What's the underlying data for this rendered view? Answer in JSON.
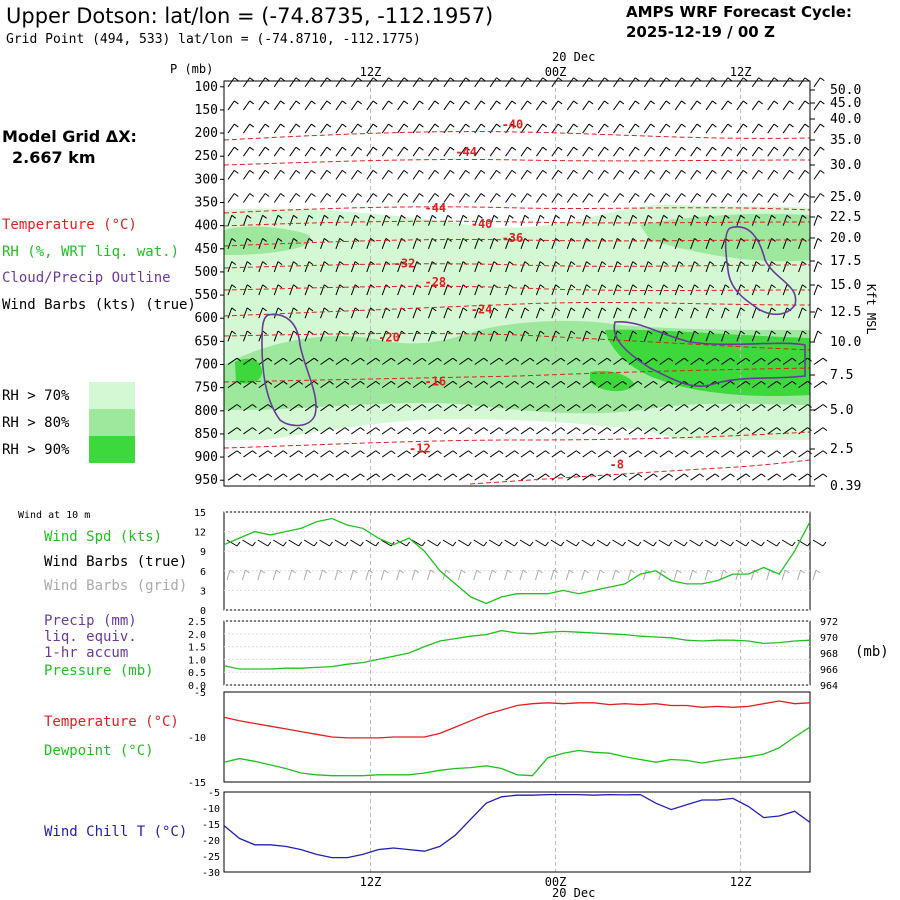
{
  "header": {
    "title": "Upper Dotson:  lat/lon = (-74.8735, -112.1957)",
    "grid_point": "Grid Point (494, 533) lat/lon = (-74.8710, -112.1775)",
    "cycle_line1": "AMPS WRF Forecast Cycle:",
    "cycle_line2": "2025-12-19 / 00  Z",
    "grid_spacing_label": "Model Grid ΔX:",
    "grid_spacing_value": "2.667 km"
  },
  "legend": {
    "temperature": "Temperature (°C)",
    "rh": "RH (%, WRT liq. wat.)",
    "cloud": "Cloud/Precip Outline",
    "wind": "Wind Barbs (kts) (true)",
    "rh_levels": [
      "RH > 70%",
      "RH > 80%",
      "RH > 90%"
    ]
  },
  "colors": {
    "temperature": "#e02020",
    "dewpoint": "#20c020",
    "rh70": "#d4f8d4",
    "rh80": "#9ee89e",
    "rh90": "#3cd83c",
    "cloud": "#6a3a9a",
    "windchill": "#2020b0",
    "grid": "#bbbbbb",
    "grey_barb": "#aaaaaa"
  },
  "chart_data": [
    {
      "id": "sounding",
      "type": "time-height cross section",
      "ylabel_left": "P (mb)",
      "ylabel_right": "Kft MSL",
      "pressure_ticks": [
        "100",
        "150",
        "200",
        "250",
        "300",
        "350",
        "400",
        "450",
        "500",
        "550",
        "600",
        "650",
        "700",
        "750",
        "800",
        "850",
        "900",
        "950"
      ],
      "height_ticks": [
        "50.0",
        "45.0",
        "40.0",
        "35.0",
        "30.0",
        "25.0",
        "22.5",
        "20.0",
        "17.5",
        "15.0",
        "12.5",
        "10.0",
        "7.5",
        "5.0",
        "2.5",
        "0.39"
      ],
      "time_ticks_top": [
        "12Z",
        "00Z",
        "12Z"
      ],
      "date_top": "20 Dec",
      "isotherms": [
        {
          "label": "-40",
          "x_hour": 18,
          "p": 190
        },
        {
          "label": "-44",
          "x_hour": 15,
          "p": 250
        },
        {
          "label": "-44",
          "x_hour": 13,
          "p": 370
        },
        {
          "label": "-40",
          "x_hour": 16,
          "p": 405
        },
        {
          "label": "-36",
          "x_hour": 18,
          "p": 435
        },
        {
          "label": "-32",
          "x_hour": 11,
          "p": 490
        },
        {
          "label": "-28",
          "x_hour": 13,
          "p": 530
        },
        {
          "label": "-24",
          "x_hour": 16,
          "p": 590
        },
        {
          "label": "-20",
          "x_hour": 10,
          "p": 650
        },
        {
          "label": "-16",
          "x_hour": 13,
          "p": 745
        },
        {
          "label": "-12",
          "x_hour": 12,
          "p": 890
        },
        {
          "label": "-8",
          "x_hour": 25,
          "p": 925
        }
      ]
    },
    {
      "id": "wind10m",
      "type": "line",
      "panel_title": "Wind at 10 m",
      "label_speed": "Wind Spd (kts)",
      "label_barbs_true": "Wind Barbs (true)",
      "label_barbs_grid": "Wind Barbs (grid)",
      "y_ticks": [
        "15",
        "12",
        "9",
        "6",
        "3",
        "0"
      ],
      "ylim": [
        0,
        15
      ],
      "series": [
        {
          "name": "Wind Spd (kts)",
          "x": [
            0,
            1,
            2,
            3,
            4,
            5,
            6,
            7,
            8,
            9,
            10,
            11,
            12,
            13,
            14,
            15,
            16,
            17,
            18,
            19,
            20,
            21,
            22,
            23,
            24,
            25,
            26,
            27,
            28,
            29,
            30,
            31,
            32,
            33,
            34,
            35,
            36,
            37,
            38
          ],
          "values": [
            10,
            11,
            12,
            11.5,
            12,
            12.5,
            13.5,
            14,
            13,
            12.5,
            11,
            10,
            11,
            9,
            6,
            4,
            2,
            1,
            2,
            2.5,
            2.5,
            2.5,
            3,
            2.5,
            3,
            3.5,
            4,
            5.5,
            6,
            4.5,
            4,
            4,
            4.5,
            5.5,
            5.5,
            6.5,
            5.5,
            9,
            13.5
          ]
        }
      ]
    },
    {
      "id": "precip_pressure",
      "type": "line",
      "label_precip": "Precip (mm)",
      "label_liq": "liq. equiv.",
      "label_accum": "1-hr accum",
      "label_pressure": "Pressure (mb)",
      "unit_right": "(mb)",
      "y_ticks_left": [
        "2.5",
        "2.0",
        "1.5",
        "1.0",
        "0.5",
        "0.0"
      ],
      "y_ticks_right": [
        "972",
        "970",
        "968",
        "966",
        "964"
      ],
      "ylim_right": [
        964,
        972
      ],
      "series": [
        {
          "name": "Pressure (mb)",
          "x": [
            0,
            1,
            2,
            3,
            4,
            5,
            6,
            7,
            8,
            9,
            10,
            11,
            12,
            13,
            14,
            15,
            16,
            17,
            18,
            19,
            20,
            21,
            22,
            23,
            24,
            25,
            26,
            27,
            28,
            29,
            30,
            31,
            32,
            33,
            34,
            35,
            36,
            37,
            38
          ],
          "values": [
            966.4,
            966.0,
            966.0,
            966.0,
            966.1,
            966.1,
            966.2,
            966.3,
            966.6,
            966.8,
            967.2,
            967.6,
            968.0,
            968.8,
            969.5,
            969.8,
            970.1,
            970.3,
            970.8,
            970.5,
            970.4,
            970.6,
            970.7,
            970.6,
            970.5,
            970.4,
            970.3,
            970.1,
            970.0,
            969.9,
            969.6,
            969.5,
            969.6,
            969.6,
            969.5,
            969.2,
            969.3,
            969.5,
            969.6
          ]
        }
      ]
    },
    {
      "id": "temp_dew",
      "type": "line",
      "label_temp": "Temperature (°C)",
      "label_dew": "Dewpoint (°C)",
      "y_ticks": [
        "-5",
        "-10",
        "-15"
      ],
      "ylim": [
        -15,
        -5
      ],
      "series": [
        {
          "name": "Temperature (°C)",
          "x": [
            0,
            1,
            2,
            3,
            4,
            5,
            6,
            7,
            8,
            9,
            10,
            11,
            12,
            13,
            14,
            15,
            16,
            17,
            18,
            19,
            20,
            21,
            22,
            23,
            24,
            25,
            26,
            27,
            28,
            29,
            30,
            31,
            32,
            33,
            34,
            35,
            36,
            37,
            38
          ],
          "values": [
            -7.8,
            -8.2,
            -8.5,
            -8.8,
            -9.1,
            -9.4,
            -9.7,
            -10.0,
            -10.1,
            -10.1,
            -10.1,
            -10.0,
            -10.0,
            -10.0,
            -9.6,
            -8.9,
            -8.2,
            -7.5,
            -7.0,
            -6.5,
            -6.3,
            -6.2,
            -6.3,
            -6.2,
            -6.2,
            -6.4,
            -6.3,
            -6.4,
            -6.3,
            -6.5,
            -6.5,
            -6.7,
            -6.6,
            -6.7,
            -6.6,
            -6.3,
            -6.0,
            -6.3,
            -6.2
          ]
        },
        {
          "name": "Dewpoint (°C)",
          "x": [
            0,
            1,
            2,
            3,
            4,
            5,
            6,
            7,
            8,
            9,
            10,
            11,
            12,
            13,
            14,
            15,
            16,
            17,
            18,
            19,
            20,
            21,
            22,
            23,
            24,
            25,
            26,
            27,
            28,
            29,
            30,
            31,
            32,
            33,
            34,
            35,
            36,
            37,
            38
          ],
          "values": [
            -12.8,
            -12.4,
            -12.7,
            -13.1,
            -13.5,
            -14.0,
            -14.2,
            -14.3,
            -14.3,
            -14.3,
            -14.2,
            -14.2,
            -14.2,
            -14.0,
            -13.7,
            -13.5,
            -13.4,
            -13.2,
            -13.5,
            -14.2,
            -14.3,
            -12.3,
            -11.8,
            -11.5,
            -11.7,
            -11.8,
            -12.2,
            -12.5,
            -12.8,
            -12.5,
            -12.6,
            -12.9,
            -12.6,
            -12.4,
            -12.2,
            -11.9,
            -11.2,
            -10.0,
            -8.9
          ]
        }
      ]
    },
    {
      "id": "windchill",
      "type": "line",
      "label": "Wind Chill T (°C)",
      "y_ticks": [
        "-5",
        "-10",
        "-15",
        "-20",
        "-25",
        "-30"
      ],
      "ylim": [
        -30,
        -5
      ],
      "time_ticks_bottom": [
        "12Z",
        "00Z",
        "12Z"
      ],
      "date_bottom": "20 Dec",
      "series": [
        {
          "name": "Wind Chill T (°C)",
          "x": [
            0,
            1,
            2,
            3,
            4,
            5,
            6,
            7,
            8,
            9,
            10,
            11,
            12,
            13,
            14,
            15,
            16,
            17,
            18,
            19,
            20,
            21,
            22,
            23,
            24,
            25,
            26,
            27,
            28,
            29,
            30,
            31,
            32,
            33,
            34,
            35,
            36,
            37,
            38
          ],
          "values": [
            -15.5,
            -19.5,
            -21.5,
            -21.5,
            -22.0,
            -23.0,
            -24.5,
            -25.5,
            -25.5,
            -24.5,
            -23.0,
            -22.5,
            -23.0,
            -23.5,
            -22.0,
            -18.5,
            -13.5,
            -8.5,
            -6.5,
            -6.0,
            -6.0,
            -5.8,
            -5.8,
            -5.8,
            -6.0,
            -5.8,
            -5.9,
            -5.8,
            -8.5,
            -10.5,
            -9.0,
            -7.5,
            -7.5,
            -7.0,
            -9.5,
            -13.0,
            -12.5,
            -11.0,
            -14.5
          ]
        }
      ]
    }
  ]
}
